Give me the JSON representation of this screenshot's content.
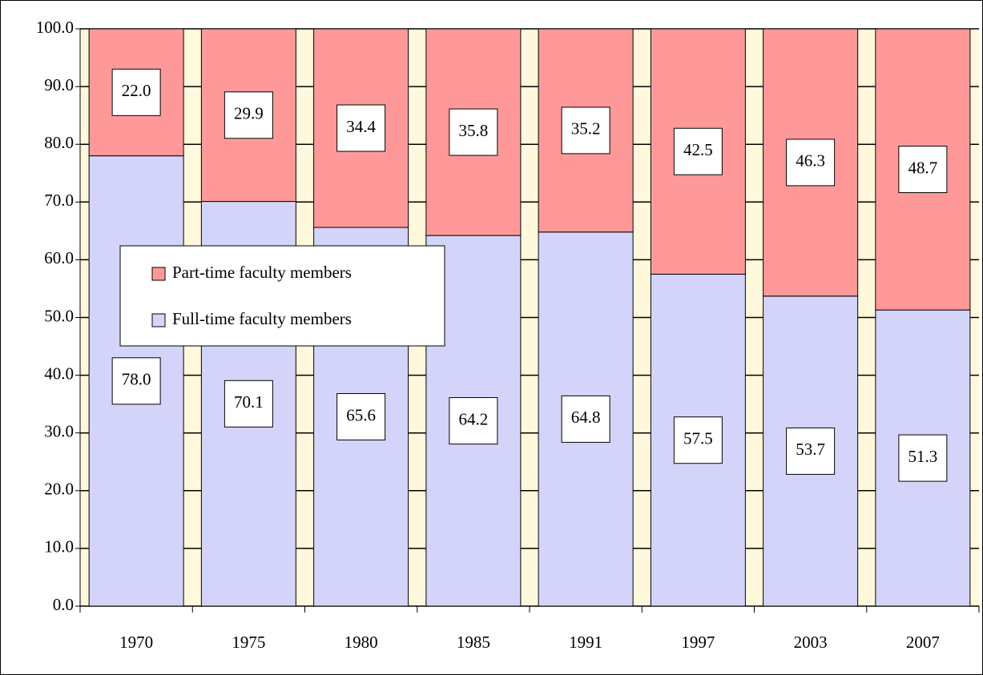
{
  "chart_data": {
    "type": "stacked_bar",
    "categories": [
      "1970",
      "1975",
      "1980",
      "1985",
      "1991",
      "1997",
      "2003",
      "2007"
    ],
    "series": [
      {
        "name": "Full-time faculty members",
        "color": "#d4d4fa",
        "values": [
          78.0,
          70.1,
          65.6,
          64.2,
          64.8,
          57.5,
          53.7,
          51.3
        ],
        "value_labels": [
          "78.0",
          "70.1",
          "65.6",
          "64.2",
          "64.8",
          "57.5",
          "53.7",
          "51.3"
        ]
      },
      {
        "name": "Part-time faculty members",
        "color": "#ff9999",
        "values": [
          22.0,
          29.9,
          34.4,
          35.8,
          35.2,
          42.5,
          46.3,
          48.7
        ],
        "value_labels": [
          "22.0",
          "29.9",
          "34.4",
          "35.8",
          "35.2",
          "42.5",
          "46.3",
          "48.7"
        ]
      }
    ],
    "ylim": [
      0,
      100
    ],
    "yticks": [
      {
        "value": 0,
        "label": "0.0"
      },
      {
        "value": 10,
        "label": "10.0"
      },
      {
        "value": 20,
        "label": "20.0"
      },
      {
        "value": 30,
        "label": "30.0"
      },
      {
        "value": 40,
        "label": "40.0"
      },
      {
        "value": 50,
        "label": "50.0"
      },
      {
        "value": 60,
        "label": "60.0"
      },
      {
        "value": 70,
        "label": "70.0"
      },
      {
        "value": 80,
        "label": "80.0"
      },
      {
        "value": 90,
        "label": "90.0"
      },
      {
        "value": 100,
        "label": "100.0"
      }
    ],
    "grid": true,
    "legend_position": "left"
  }
}
